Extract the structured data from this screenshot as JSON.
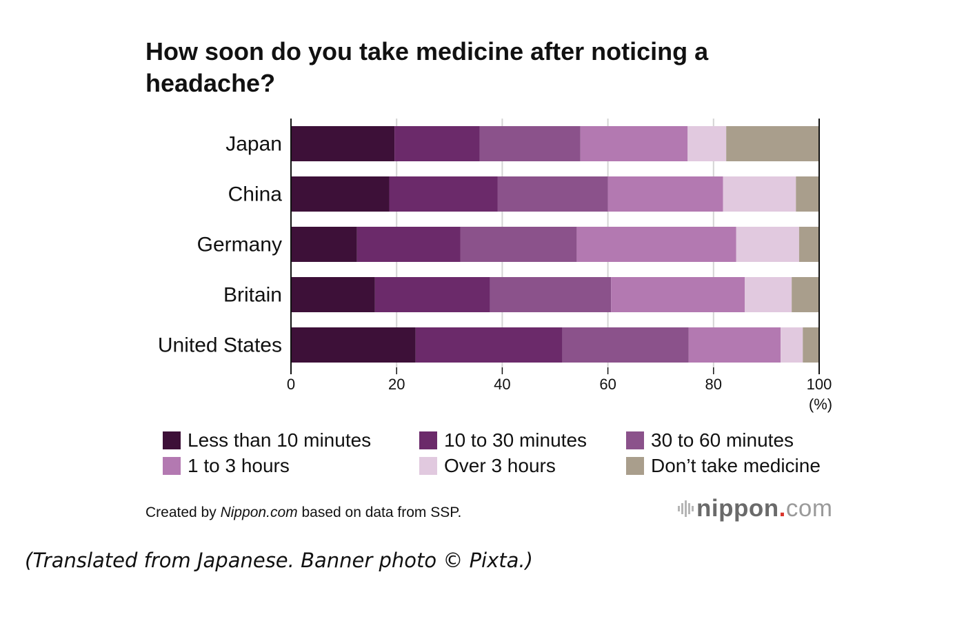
{
  "chart_data": {
    "type": "bar",
    "orientation": "horizontal",
    "stacked": true,
    "title": "How soon do you take medicine after noticing a headache?",
    "categories": [
      "Japan",
      "China",
      "Germany",
      "Britain",
      "United States"
    ],
    "series": [
      {
        "name": "Less than 10 minutes",
        "color": "#3d1038",
        "values": [
          19.6,
          18.6,
          12.5,
          15.9,
          23.6
        ]
      },
      {
        "name": "10 to 30 minutes",
        "color": "#6b2a6a",
        "values": [
          16.1,
          20.5,
          19.6,
          21.8,
          27.8
        ]
      },
      {
        "name": "30 to 60 minutes",
        "color": "#8b528b",
        "values": [
          19.1,
          20.9,
          22.0,
          22.9,
          23.9
        ]
      },
      {
        "name": "1 to 3 hours",
        "color": "#b379b1",
        "values": [
          20.3,
          21.8,
          30.2,
          25.3,
          17.4
        ]
      },
      {
        "name": "Over 3 hours",
        "color": "#e1c9df",
        "values": [
          7.3,
          13.8,
          11.9,
          8.9,
          4.2
        ]
      },
      {
        "name": "Don’t take medicine",
        "color": "#a99e8c",
        "values": [
          17.6,
          4.4,
          3.8,
          5.2,
          3.1
        ]
      }
    ],
    "xlim": [
      0,
      100
    ],
    "x_ticks": [
      "0",
      "20",
      "40",
      "60",
      "80",
      "100"
    ],
    "x_unit": "(%)",
    "grid": "vertical",
    "legend_position": "bottom"
  },
  "credit": {
    "prefix": "Created by ",
    "source_name": "Nippon.com",
    "suffix": " based on data from SSP."
  },
  "logo": {
    "main": "nippon",
    "dot": ".",
    "com": "com"
  },
  "footnote": "(Translated from Japanese. Banner photo © Pixta.)"
}
